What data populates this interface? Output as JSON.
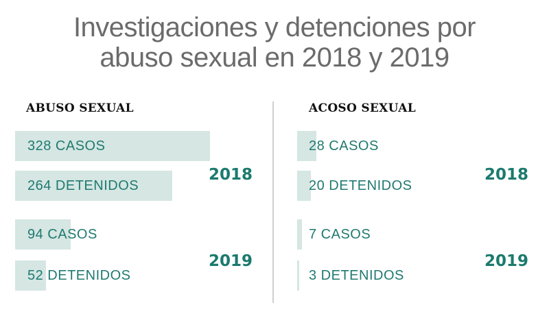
{
  "title": {
    "line1": "Investigaciones y detenciones por",
    "line2": "abuso sexual en 2018 y 2019"
  },
  "colors": {
    "bar_fill": "#d5e6e3",
    "text_teal": "#1f7a70",
    "year_teal": "#1b7a6e",
    "title_gray": "#6b6b6b"
  },
  "chart_data": [
    {
      "type": "bar",
      "title": "ABUSO SEXUAL",
      "orientation": "horizontal",
      "groups": [
        {
          "year": "2018",
          "bars": [
            {
              "label": "328 CASOS",
              "value": 328
            },
            {
              "label": "264 DETENIDOS",
              "value": 264
            }
          ]
        },
        {
          "year": "2019",
          "bars": [
            {
              "label": "94 CASOS",
              "value": 94
            },
            {
              "label": "52 DETENIDOS",
              "value": 52
            }
          ]
        }
      ]
    },
    {
      "type": "bar",
      "title": "ACOSO SEXUAL",
      "orientation": "horizontal",
      "groups": [
        {
          "year": "2018",
          "bars": [
            {
              "label": "28 CASOS",
              "value": 28
            },
            {
              "label": "20 DETENIDOS",
              "value": 20
            }
          ]
        },
        {
          "year": "2019",
          "bars": [
            {
              "label": "7 CASOS",
              "value": 7
            },
            {
              "label": "3 DETENIDOS",
              "value": 3
            }
          ]
        }
      ]
    }
  ]
}
